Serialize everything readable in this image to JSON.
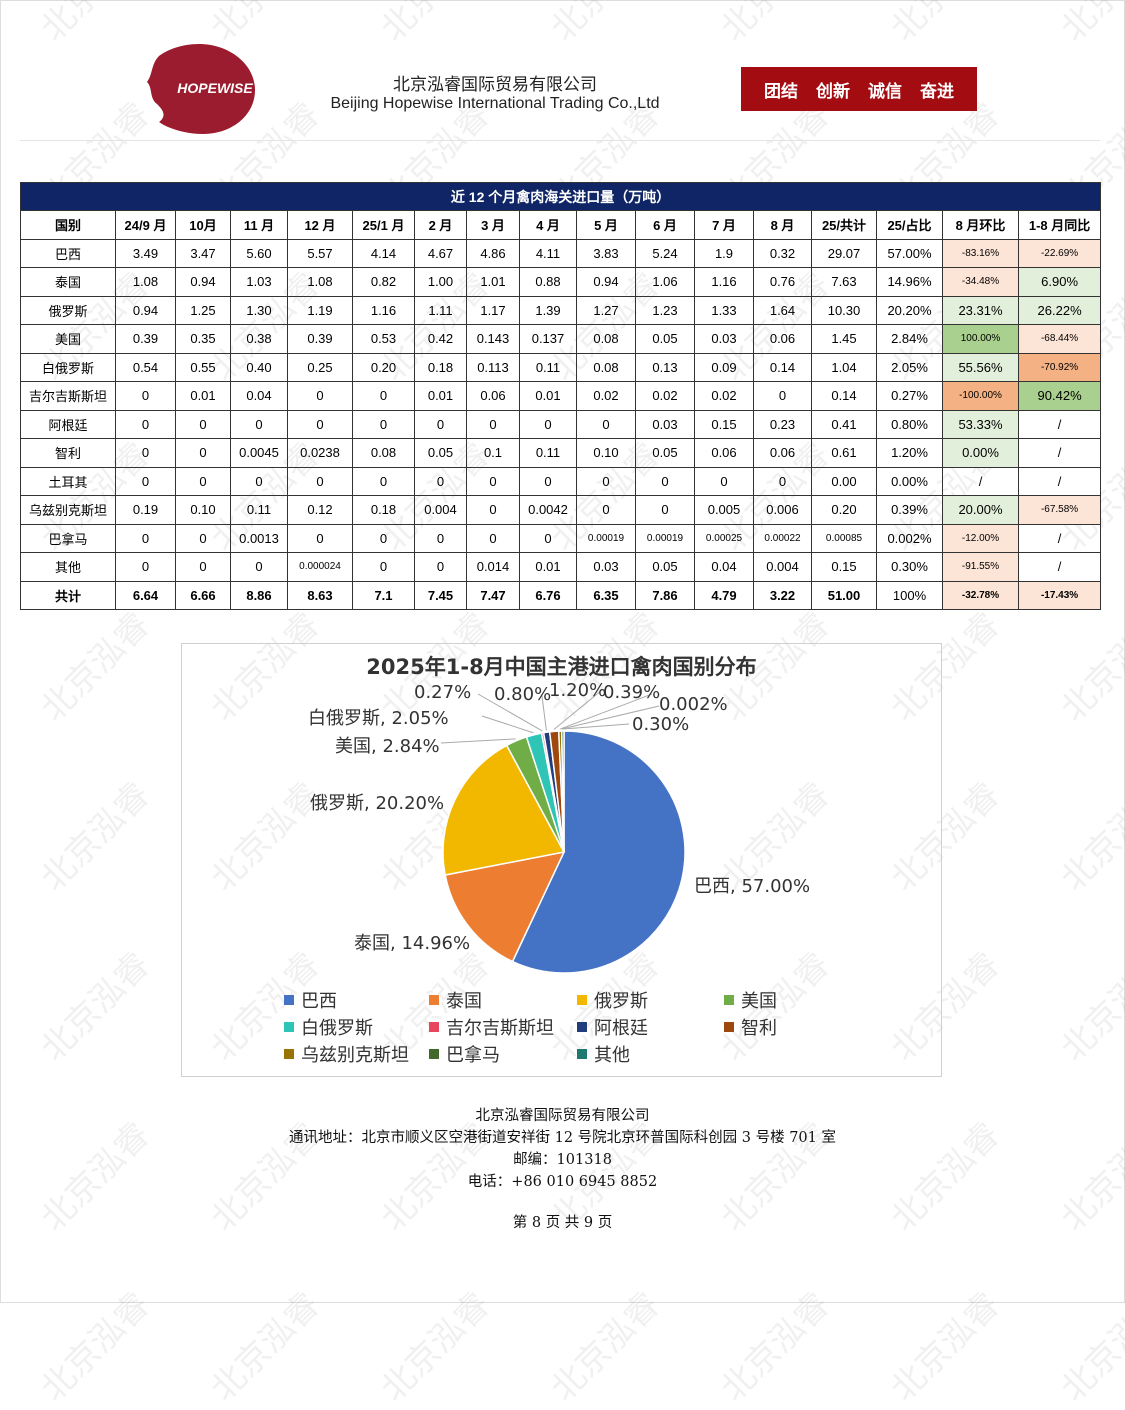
{
  "watermark": "北京泓睿",
  "header": {
    "logo_text": "HOPEWISE",
    "company_cn": "北京泓睿国际贸易有限公司",
    "company_en": "Beijing Hopewise International Trading Co.,Ltd",
    "motto": [
      "团结",
      "创新",
      "诚信",
      "奋进"
    ],
    "brand_color": "#a30d12"
  },
  "table": {
    "title": "近 12 个月禽肉海关进口量（万吨）",
    "columns": [
      "国别",
      "24/9 月",
      "10月",
      "11 月",
      "12 月",
      "25/1 月",
      "2 月",
      "3 月",
      "4 月",
      "5 月",
      "6 月",
      "7 月",
      "8 月",
      "25/共计",
      "25/占比",
      "8 月环比",
      "1-8 月同比"
    ],
    "rows": [
      {
        "country": "巴西",
        "values": [
          "3.49",
          "3.47",
          "5.60",
          "5.57",
          "4.14",
          "4.67",
          "4.86",
          "4.11",
          "3.83",
          "5.24",
          "1.9",
          "0.32",
          "29.07",
          "57.00%",
          "-83.16%",
          "-22.69%"
        ],
        "mom_color": "peach",
        "yoy_color": "peach"
      },
      {
        "country": "泰国",
        "values": [
          "1.08",
          "0.94",
          "1.03",
          "1.08",
          "0.82",
          "1.00",
          "1.01",
          "0.88",
          "0.94",
          "1.06",
          "1.16",
          "0.76",
          "7.63",
          "14.96%",
          "-34.48%",
          "6.90%"
        ],
        "mom_color": "peach",
        "yoy_color": "green"
      },
      {
        "country": "俄罗斯",
        "values": [
          "0.94",
          "1.25",
          "1.30",
          "1.19",
          "1.16",
          "1.11",
          "1.17",
          "1.39",
          "1.27",
          "1.23",
          "1.33",
          "1.64",
          "10.30",
          "20.20%",
          "23.31%",
          "26.22%"
        ],
        "mom_color": "green",
        "yoy_color": "green"
      },
      {
        "country": "美国",
        "values": [
          "0.39",
          "0.35",
          "0.38",
          "0.39",
          "0.53",
          "0.42",
          "0.143",
          "0.137",
          "0.08",
          "0.05",
          "0.03",
          "0.06",
          "1.45",
          "2.84%",
          "100.00%",
          "-68.44%"
        ],
        "mom_color": "dkgreen",
        "yoy_color": "peach"
      },
      {
        "country": "白俄罗斯",
        "values": [
          "0.54",
          "0.55",
          "0.40",
          "0.25",
          "0.20",
          "0.18",
          "0.113",
          "0.11",
          "0.08",
          "0.13",
          "0.09",
          "0.14",
          "1.04",
          "2.05%",
          "55.56%",
          "-70.92%"
        ],
        "mom_color": "green",
        "yoy_color": "orange"
      },
      {
        "country": "吉尔吉斯斯坦",
        "values": [
          "0",
          "0.01",
          "0.04",
          "0",
          "0",
          "0.01",
          "0.06",
          "0.01",
          "0.02",
          "0.02",
          "0.02",
          "0",
          "0.14",
          "0.27%",
          "-100.00%",
          "90.42%"
        ],
        "mom_color": "orange",
        "yoy_color": "dkgreen"
      },
      {
        "country": "阿根廷",
        "values": [
          "0",
          "0",
          "0",
          "0",
          "0",
          "0",
          "0",
          "0",
          "0",
          "0.03",
          "0.15",
          "0.23",
          "0.41",
          "0.80%",
          "53.33%",
          "/"
        ],
        "mom_color": "green",
        "yoy_color": ""
      },
      {
        "country": "智利",
        "values": [
          "0",
          "0",
          "0.0045",
          "0.0238",
          "0.08",
          "0.05",
          "0.1",
          "0.11",
          "0.10",
          "0.05",
          "0.06",
          "0.06",
          "0.61",
          "1.20%",
          "0.00%",
          "/"
        ],
        "mom_color": "green",
        "yoy_color": ""
      },
      {
        "country": "土耳其",
        "values": [
          "0",
          "0",
          "0",
          "0",
          "0",
          "0",
          "0",
          "0",
          "0",
          "0",
          "0",
          "0",
          "0.00",
          "0.00%",
          "/",
          "/"
        ],
        "mom_color": "",
        "yoy_color": ""
      },
      {
        "country": "乌兹别克斯坦",
        "values": [
          "0.19",
          "0.10",
          "0.11",
          "0.12",
          "0.18",
          "0.004",
          "0",
          "0.0042",
          "0",
          "0",
          "0.005",
          "0.006",
          "0.20",
          "0.39%",
          "20.00%",
          "-67.58%"
        ],
        "mom_color": "green",
        "yoy_color": "peach"
      },
      {
        "country": "巴拿马",
        "values": [
          "0",
          "0",
          "0.0013",
          "0",
          "0",
          "0",
          "0",
          "0",
          "0.00019",
          "0.00019",
          "0.00025",
          "0.00022",
          "0.00085",
          "0.002%",
          "-12.00%",
          "/"
        ],
        "mom_color": "peach",
        "yoy_color": ""
      },
      {
        "country": "其他",
        "values": [
          "0",
          "0",
          "0",
          "0.000024",
          "0",
          "0",
          "0.014",
          "0.01",
          "0.03",
          "0.05",
          "0.04",
          "0.004",
          "0.15",
          "0.30%",
          "-91.55%",
          "/"
        ],
        "mom_color": "peach",
        "yoy_color": ""
      }
    ],
    "total": {
      "country": "共计",
      "values": [
        "6.64",
        "6.66",
        "8.86",
        "8.63",
        "7.1",
        "7.45",
        "7.47",
        "6.76",
        "6.35",
        "7.86",
        "4.79",
        "3.22",
        "51.00",
        "100%",
        "-32.78%",
        "-17.43%"
      ],
      "mom_color": "peach",
      "yoy_color": "peach"
    }
  },
  "chart_data": {
    "type": "pie",
    "title": "2025年1-8月中国主港进口禽肉国别分布",
    "categories": [
      "巴西",
      "泰国",
      "俄罗斯",
      "美国",
      "白俄罗斯",
      "吉尔吉斯斯坦",
      "阿根廷",
      "智利",
      "乌兹别克斯坦",
      "巴拿马",
      "其他"
    ],
    "values": [
      57.0,
      14.96,
      20.2,
      2.84,
      2.05,
      0.27,
      0.8,
      1.2,
      0.39,
      0.002,
      0.3
    ],
    "labels": [
      "巴西, 57.00%",
      "泰国, 14.96%",
      "俄罗斯, 20.20%",
      "美国, 2.84%",
      "白俄罗斯, 2.05%",
      "0.27%",
      "0.80%",
      "1.20%",
      "0.39%",
      "0.002%",
      "0.30%"
    ],
    "colors": [
      "#4472c4",
      "#ed7d31",
      "#f2b800",
      "#70ad47",
      "#2ec4b6",
      "#e8455f",
      "#203d7d",
      "#9e480e",
      "#997300",
      "#43682b",
      "#1e7a70"
    ],
    "legend_position": "bottom"
  },
  "footer": {
    "company": "北京泓睿国际贸易有限公司",
    "address": "通讯地址：北京市顺义区空港街道安祥街 12 号院北京环普国际科创园 3 号楼 701 室",
    "postcode": "邮编：101318",
    "phone": "电话：+86 010 6945 8852",
    "page": "第 8 页 共 9 页"
  }
}
